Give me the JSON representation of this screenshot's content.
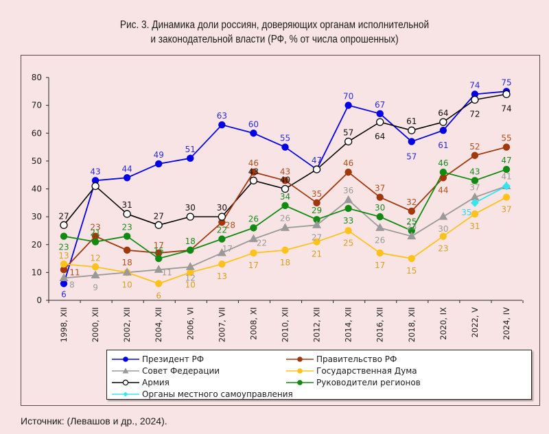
{
  "title_line1": "Рис. 3. Динамика доли россиян, доверяющих органам исполнительной",
  "title_line2": "и законодательной власти (РФ, % от числа опрошенных)",
  "source": "Источник: (Левашов и др., 2024).",
  "chart_data": {
    "type": "line",
    "title": "Рис. 3. Динамика доли россиян, доверяющих органам исполнительной и законодательной власти (РФ, % от числа опрошенных)",
    "xlabel": "",
    "ylabel": "",
    "ylim": [
      0,
      80
    ],
    "yticks": [
      0,
      10,
      20,
      30,
      40,
      50,
      60,
      70,
      80
    ],
    "grid": false,
    "legend_position": "bottom",
    "categories": [
      "1998, XII",
      "2000, XII",
      "2002, XII",
      "2004, XII",
      "2006, VI",
      "2007, VII",
      "2008, XI",
      "2010, XII",
      "2012, XII",
      "2014, XII",
      "2016, XII",
      "2018, XII",
      "2020, IX",
      "2022, V",
      "2024, IV"
    ],
    "series": [
      {
        "name": "Президент РФ",
        "color": "#0000e6",
        "label_color": "#2b2bd0",
        "marker": "circle",
        "values": [
          6,
          43,
          44,
          49,
          51,
          63,
          60,
          55,
          47,
          70,
          67,
          57,
          61,
          74,
          75
        ]
      },
      {
        "name": "Совет Федерации",
        "color": "#999999",
        "label_color": "#9a9a9a",
        "marker": "triangle",
        "values": [
          8,
          9,
          10,
          11,
          12,
          17,
          22,
          26,
          27,
          36,
          26,
          23,
          30,
          37,
          41
        ]
      },
      {
        "name": "Армия",
        "color": "#000000",
        "label_color": "#111111",
        "marker": "open-circle",
        "values": [
          27,
          41,
          31,
          27,
          30,
          30,
          43,
          40,
          47,
          57,
          64,
          61,
          64,
          72,
          74
        ]
      },
      {
        "name": "Органы местного самоуправления",
        "color": "#33e6f0",
        "label_color": "#2fd8e8",
        "marker": "diamond",
        "values": [
          null,
          null,
          null,
          null,
          null,
          null,
          null,
          null,
          null,
          null,
          null,
          null,
          null,
          35,
          41
        ]
      },
      {
        "name": "Правительство РФ",
        "color": "#a0380c",
        "label_color": "#b0501e",
        "marker": "circle",
        "values": [
          11,
          23,
          18,
          17,
          18,
          28,
          46,
          43,
          35,
          46,
          37,
          32,
          44,
          52,
          55
        ]
      },
      {
        "name": "Государственная Дума",
        "color": "#ffc21a",
        "label_color": "#d9a020",
        "marker": "circle",
        "values": [
          13,
          12,
          10,
          6,
          10,
          13,
          17,
          18,
          21,
          25,
          17,
          15,
          23,
          31,
          37
        ]
      },
      {
        "name": "Руководители регионов",
        "color": "#108a10",
        "label_color": "#1c8a1c",
        "marker": "circle",
        "values": [
          23,
          21,
          23,
          15,
          18,
          22,
          26,
          34,
          29,
          33,
          30,
          25,
          46,
          43,
          47
        ]
      }
    ],
    "data_labels_shown": {
      "Президент РФ": [
        6,
        43,
        44,
        49,
        51,
        63,
        60,
        55,
        47,
        70,
        67,
        57,
        61,
        74,
        75
      ],
      "Совет Федерации": [
        8,
        9,
        null,
        11,
        12,
        17,
        22,
        26,
        27,
        36,
        26,
        23,
        30,
        37,
        41
      ],
      "Армия": [
        27,
        null,
        31,
        27,
        30,
        30,
        43,
        40,
        null,
        57,
        64,
        61,
        64,
        72,
        74
      ],
      "Органы местного самоуправления": [
        null,
        null,
        null,
        null,
        null,
        null,
        null,
        null,
        null,
        null,
        null,
        null,
        null,
        35,
        null
      ],
      "Правительство РФ": [
        11,
        23,
        18,
        17,
        null,
        28,
        46,
        43,
        35,
        46,
        37,
        32,
        44,
        52,
        55
      ],
      "Государственная Дума": [
        13,
        12,
        10,
        6,
        10,
        13,
        17,
        18,
        21,
        25,
        17,
        15,
        23,
        31,
        37
      ],
      "Руководители регионов": [
        23,
        21,
        23,
        15,
        18,
        22,
        26,
        34,
        29,
        33,
        30,
        25,
        46,
        43,
        47
      ]
    }
  },
  "legend": {
    "items": [
      {
        "label": "Президент РФ"
      },
      {
        "label": "Совет Федерации"
      },
      {
        "label": "Армия"
      },
      {
        "label": "Органы местного самоуправления"
      },
      {
        "label": "Правительство РФ"
      },
      {
        "label": "Государственная Дума"
      },
      {
        "label": "Руководители регионов"
      }
    ]
  }
}
